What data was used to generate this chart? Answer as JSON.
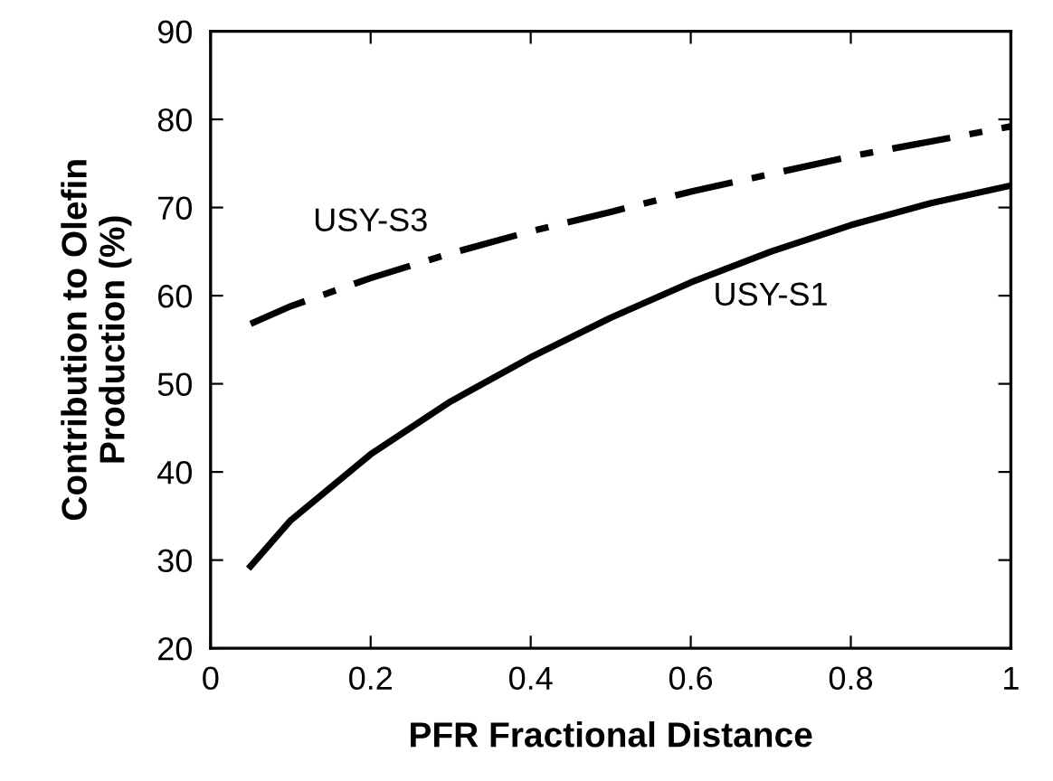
{
  "chart_data": {
    "type": "line",
    "xlabel": "PFR Fractional Distance",
    "ylabel": "Contribution to Olefin\nProduction (%)",
    "xlim": [
      0,
      1
    ],
    "ylim": [
      20,
      90
    ],
    "xticks": [
      0,
      0.2,
      0.4,
      0.6,
      0.8,
      1
    ],
    "yticks": [
      20,
      30,
      40,
      50,
      60,
      70,
      80,
      90
    ],
    "grid": false,
    "legend": false,
    "marker": "none",
    "series": [
      {
        "name": "USY-S3",
        "color": "#000000",
        "line_style": "dashdot",
        "x": [
          0.05,
          0.1,
          0.2,
          0.3,
          0.4,
          0.5,
          0.6,
          0.7,
          0.8,
          0.9,
          1
        ],
        "values": [
          56.8,
          58.8,
          62,
          64.8,
          67.3,
          69.5,
          71.8,
          73.8,
          75.8,
          77.5,
          79.2
        ]
      },
      {
        "name": "USY-S1",
        "color": "#000000",
        "line_style": "solid",
        "x": [
          0.05,
          0.1,
          0.2,
          0.3,
          0.4,
          0.5,
          0.6,
          0.7,
          0.8,
          0.9,
          1
        ],
        "values": [
          29.3,
          34.5,
          42,
          48,
          53,
          57.5,
          61.5,
          65,
          68,
          70.5,
          72.5
        ]
      }
    ]
  }
}
